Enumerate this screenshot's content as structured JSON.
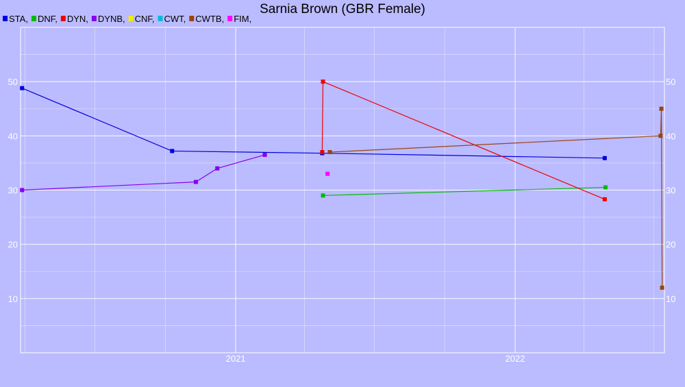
{
  "chart_data": {
    "type": "line",
    "title": "Sarnia Brown (GBR Female)",
    "xlabel": "",
    "ylabel": "",
    "x_ticks": [
      "2021",
      "2022"
    ],
    "y_ticks": [
      10,
      20,
      30,
      40,
      50
    ],
    "ylim": [
      0,
      60
    ],
    "xlim": [
      "2020-03-26",
      "2022-07-15"
    ],
    "grid": true,
    "legend_position": "top-left",
    "series": [
      {
        "name": "STA",
        "color": "#0000dd",
        "points": [
          {
            "x": "2020-03-28",
            "y": 48.8
          },
          {
            "x": "2020-10-10",
            "y": 37.2
          },
          {
            "x": "2021-04-24",
            "y": 36.8
          },
          {
            "x": "2022-04-28",
            "y": 35.9
          }
        ]
      },
      {
        "name": "DNF",
        "color": "#00bb00",
        "points": [
          {
            "x": "2021-04-25",
            "y": 29
          },
          {
            "x": "2022-04-29",
            "y": 30.5
          }
        ]
      },
      {
        "name": "DYN",
        "color": "#ee0000",
        "points": [
          {
            "x": "2021-04-24",
            "y": 37
          },
          {
            "x": "2021-04-25",
            "y": 50
          },
          {
            "x": "2022-04-28",
            "y": 28.3
          }
        ]
      },
      {
        "name": "DYNB",
        "color": "#8800ee",
        "points": [
          {
            "x": "2020-03-28",
            "y": 30
          },
          {
            "x": "2020-11-10",
            "y": 31.5
          },
          {
            "x": "2020-12-08",
            "y": 34
          },
          {
            "x": "2021-02-08",
            "y": 36.5
          }
        ]
      },
      {
        "name": "CNF",
        "color": "#eeee00",
        "points": []
      },
      {
        "name": "CWT",
        "color": "#00bbdd",
        "points": []
      },
      {
        "name": "CWTB",
        "color": "#994411",
        "points": [
          {
            "x": "2021-05-04",
            "y": 37
          },
          {
            "x": "2022-07-10",
            "y": 40
          },
          {
            "x": "2022-07-11",
            "y": 45
          },
          {
            "x": "2022-07-12",
            "y": 12
          }
        ]
      },
      {
        "name": "FIM",
        "color": "#ff00ff",
        "points": [
          {
            "x": "2021-05-01",
            "y": 33
          }
        ]
      }
    ]
  }
}
